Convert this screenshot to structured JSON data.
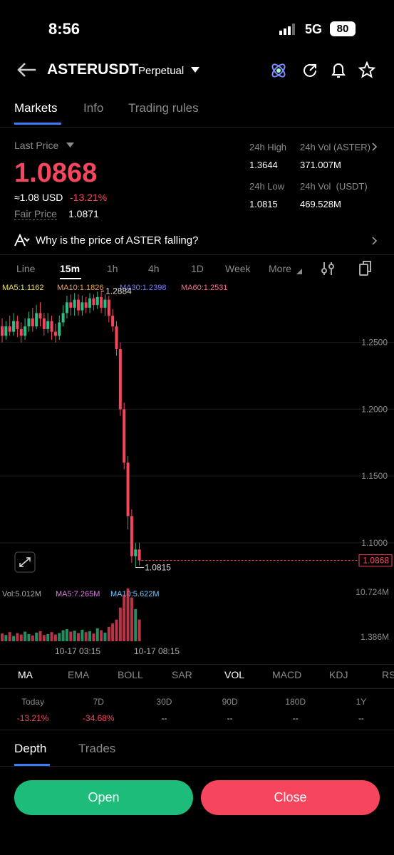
{
  "status_bar": {
    "time": "8:56",
    "network": "5G",
    "battery": "80"
  },
  "header": {
    "symbol": "ASTERUSDT",
    "contract": "Perpetual"
  },
  "tabs": [
    "Markets",
    "Info",
    "Trading rules"
  ],
  "price": {
    "label": "Last Price",
    "last": "1.0868",
    "approx": "≈1.08 USD",
    "change": "-13.21%",
    "fair_label": "Fair Price",
    "fair": "1.0871"
  },
  "stats": [
    {
      "label": "24h High",
      "value": "1.3644"
    },
    {
      "label": "24h Vol (ASTER)",
      "value": "371.007M"
    },
    {
      "label": "24h Low",
      "value": "1.0815"
    },
    {
      "label": "24h Vol  (USDT)",
      "value": "469.528M"
    }
  ],
  "insight": "Why is the price of ASTER falling?",
  "intervals": [
    "Line",
    "15m",
    "1h",
    "4h",
    "1D",
    "Week",
    "More"
  ],
  "ma_legend": [
    "MA5:1.1162",
    "MA10:1.1826",
    "MA30:1.2398",
    "MA60:1.2531"
  ],
  "price_chart": {
    "type": "candlestick",
    "ylim": [
      1.069,
      1.293
    ],
    "yticks": [
      {
        "value": 1.25,
        "label": "1.2500"
      },
      {
        "value": 1.2,
        "label": "1.2000"
      },
      {
        "value": 1.15,
        "label": "1.1500"
      },
      {
        "value": 1.1,
        "label": "1.1000"
      }
    ],
    "last_price": {
      "value": 1.0868,
      "label": "1.0868"
    },
    "high": {
      "value": 1.2884,
      "label": "1.2884"
    },
    "low": {
      "value": 1.0815,
      "label": "1.0815"
    },
    "candles": [
      [
        1.262,
        1.255,
        1.268,
        1.25
      ],
      [
        1.255,
        1.262,
        1.266,
        1.252
      ],
      [
        1.262,
        1.258,
        1.27,
        1.255
      ],
      [
        1.258,
        1.266,
        1.272,
        1.255
      ],
      [
        1.266,
        1.26,
        1.27,
        1.254
      ],
      [
        1.26,
        1.255,
        1.265,
        1.25
      ],
      [
        1.255,
        1.262,
        1.268,
        1.252
      ],
      [
        1.262,
        1.268,
        1.273,
        1.258
      ],
      [
        1.268,
        1.262,
        1.276,
        1.258
      ],
      [
        1.262,
        1.272,
        1.278,
        1.26
      ],
      [
        1.272,
        1.268,
        1.28,
        1.262
      ],
      [
        1.268,
        1.26,
        1.272,
        1.255
      ],
      [
        1.26,
        1.266,
        1.272,
        1.257
      ],
      [
        1.266,
        1.258,
        1.27,
        1.252
      ],
      [
        1.258,
        1.255,
        1.264,
        1.25
      ],
      [
        1.255,
        1.265,
        1.27,
        1.252
      ],
      [
        1.265,
        1.272,
        1.278,
        1.262
      ],
      [
        1.272,
        1.28,
        1.285,
        1.268
      ],
      [
        1.28,
        1.276,
        1.286,
        1.27
      ],
      [
        1.276,
        1.282,
        1.287,
        1.27
      ],
      [
        1.282,
        1.274,
        1.286,
        1.27
      ],
      [
        1.274,
        1.28,
        1.285,
        1.27
      ],
      [
        1.28,
        1.276,
        1.284,
        1.272
      ],
      [
        1.276,
        1.283,
        1.287,
        1.272
      ],
      [
        1.283,
        1.278,
        1.286,
        1.274
      ],
      [
        1.278,
        1.284,
        1.288,
        1.275
      ],
      [
        1.284,
        1.276,
        1.2884,
        1.272
      ],
      [
        1.276,
        1.282,
        1.286,
        1.27
      ],
      [
        1.282,
        1.27,
        1.285,
        1.265
      ],
      [
        1.27,
        1.262,
        1.275,
        1.258
      ],
      [
        1.262,
        1.245,
        1.266,
        1.24
      ],
      [
        1.245,
        1.2,
        1.25,
        1.195
      ],
      [
        1.2,
        1.16,
        1.205,
        1.155
      ],
      [
        1.16,
        1.12,
        1.165,
        1.11
      ],
      [
        1.12,
        1.09,
        1.125,
        1.085
      ],
      [
        1.09,
        1.095,
        1.1,
        1.0815
      ],
      [
        1.095,
        1.0868,
        1.1,
        1.083
      ]
    ]
  },
  "volume_chart": {
    "legend": [
      "Vol:5.012M",
      "MA5:7.265M",
      "MA10:5.622M"
    ],
    "ylim": [
      0.5,
      12.06
    ],
    "yticks": [
      {
        "value": 10.724,
        "label": "10.724M"
      },
      {
        "value": 1.386,
        "label": "1.386M"
      }
    ],
    "values": [
      2.1,
      1.8,
      2.4,
      1.6,
      2.2,
      1.9,
      2.5,
      2.0,
      1.7,
      2.3,
      2.6,
      1.8,
      2.0,
      2.4,
      1.9,
      2.2,
      2.8,
      3.0,
      2.5,
      2.7,
      2.2,
      2.9,
      2.4,
      2.6,
      2.1,
      3.2,
      2.8,
      2.3,
      3.5,
      4.2,
      5.0,
      7.5,
      10.2,
      11.5,
      9.6,
      7.2,
      5.012
    ]
  },
  "time_labels": [
    "10-17 03:15",
    "10-17 08:15"
  ],
  "indicators": [
    "MA",
    "EMA",
    "BOLL",
    "SAR",
    "VOL",
    "MACD",
    "KDJ",
    "RSI"
  ],
  "returns": [
    {
      "period": "Today",
      "value": "-13.21%"
    },
    {
      "period": "7D",
      "value": "-34.68%"
    },
    {
      "period": "30D",
      "value": "--"
    },
    {
      "period": "90D",
      "value": "--"
    },
    {
      "period": "180D",
      "value": "--"
    },
    {
      "period": "1Y",
      "value": "--"
    }
  ],
  "bottom_tabs": [
    "Depth",
    "Trades"
  ],
  "buttons": [
    "Open",
    "Close"
  ]
}
